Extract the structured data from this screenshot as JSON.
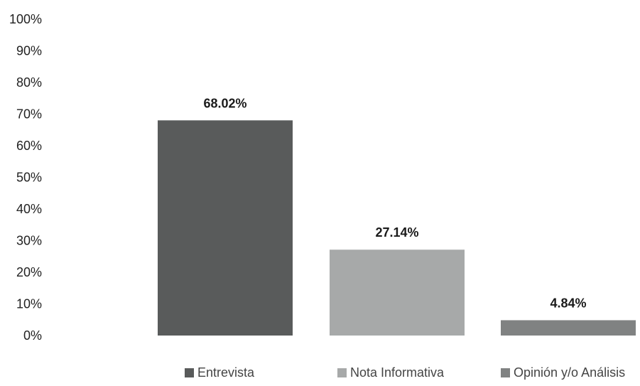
{
  "chart_data": {
    "type": "bar",
    "categories": [
      "Entrevista",
      "Nota Informativa",
      "Opinión y/o Análisis"
    ],
    "values": [
      68.02,
      27.14,
      4.84
    ],
    "data_labels": [
      "68.02%",
      "27.14%",
      "4.84%"
    ],
    "colors": [
      "#595b5b",
      "#a7a9a9",
      "#808282"
    ],
    "y_ticks": [
      "0%",
      "10%",
      "20%",
      "30%",
      "40%",
      "50%",
      "60%",
      "70%",
      "80%",
      "90%",
      "100%"
    ],
    "ylim": [
      0,
      100
    ],
    "grid": false,
    "legend_position": "bottom",
    "title": "",
    "xlabel": "",
    "ylabel": ""
  }
}
